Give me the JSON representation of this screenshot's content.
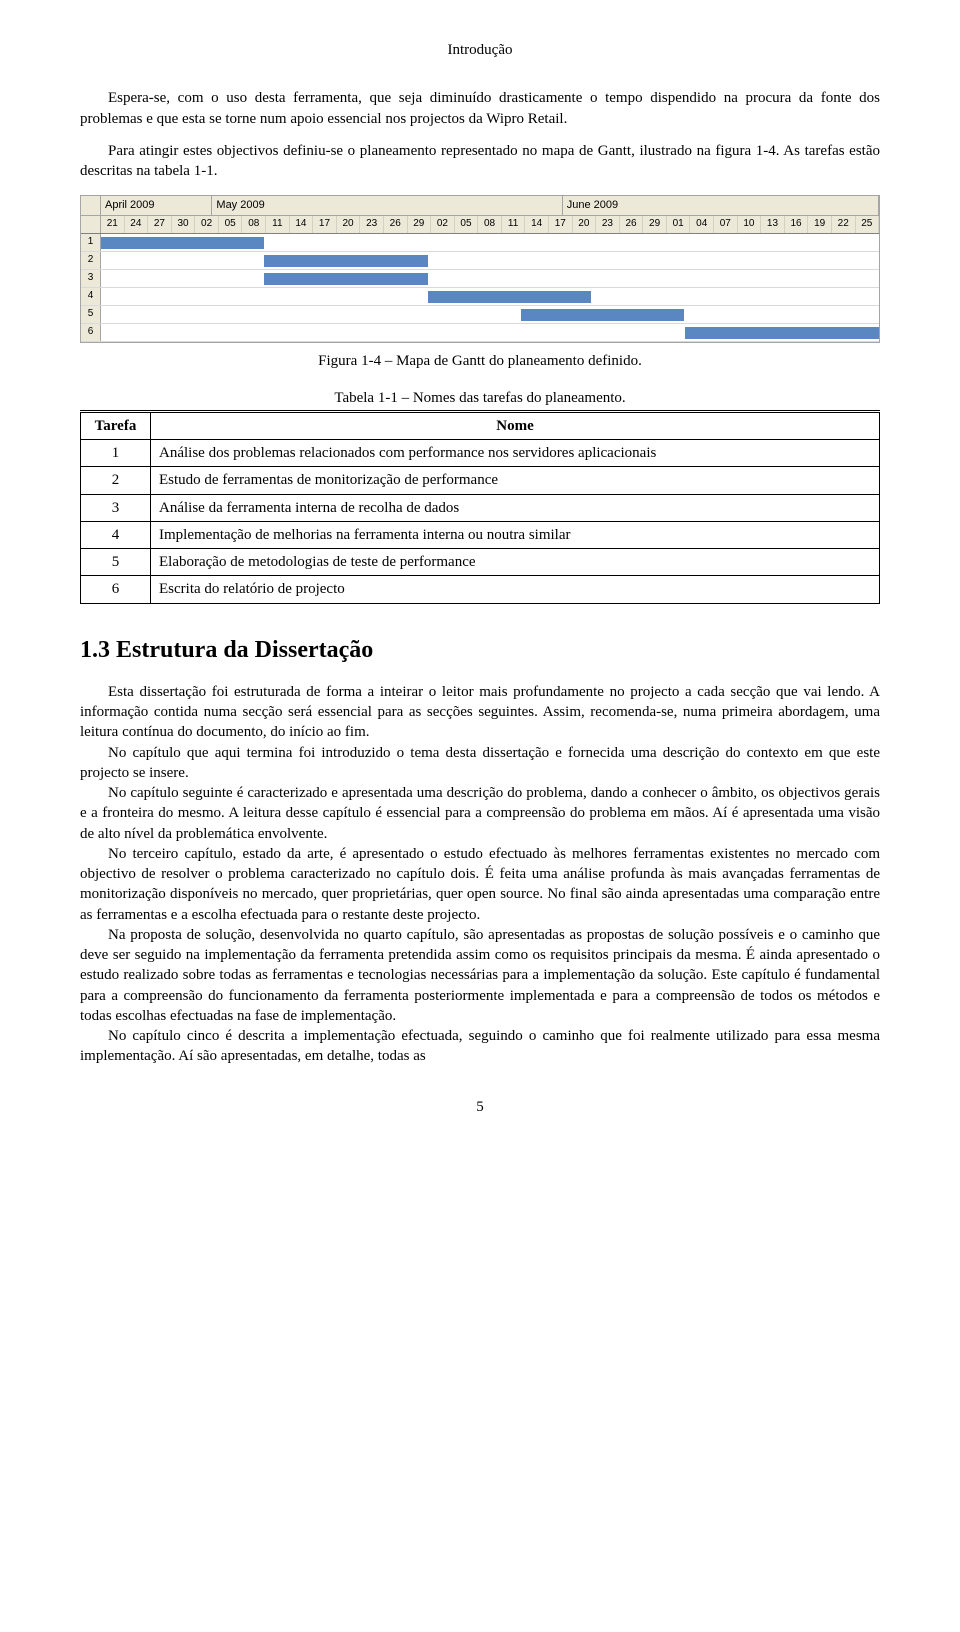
{
  "header": "Introdução",
  "intro_para": "Espera-se, com o uso desta ferramenta, que seja diminuído drasticamente o tempo dispendido na procura da fonte dos problemas e que esta se torne num apoio essencial nos projectos da Wipro Retail.",
  "intro_para2": "Para atingir estes objectivos definiu-se o planeamento representado no mapa de Gantt, ilustrado na figura 1-4. As tarefas estão descritas na tabela 1-1.",
  "gantt": {
    "months": [
      {
        "label": "April 2009",
        "flex": 3
      },
      {
        "label": "May 2009",
        "flex": 10
      },
      {
        "label": "June 2009",
        "flex": 9
      }
    ],
    "days": [
      "21",
      "24",
      "27",
      "30",
      "02",
      "05",
      "08",
      "11",
      "14",
      "17",
      "20",
      "23",
      "26",
      "29",
      "02",
      "05",
      "08",
      "11",
      "14",
      "17",
      "20",
      "23",
      "26",
      "29",
      "01",
      "04",
      "07",
      "10",
      "13",
      "16",
      "19",
      "22",
      "25"
    ],
    "rows": [
      {
        "num": "1",
        "start_pct": 0,
        "width_pct": 21,
        "color": "#5a86c2"
      },
      {
        "num": "2",
        "start_pct": 21,
        "width_pct": 21,
        "color": "#5a86c2"
      },
      {
        "num": "3",
        "start_pct": 21,
        "width_pct": 21,
        "color": "#5a86c2"
      },
      {
        "num": "4",
        "start_pct": 42,
        "width_pct": 21,
        "color": "#5a86c2"
      },
      {
        "num": "5",
        "start_pct": 54,
        "width_pct": 21,
        "color": "#5a86c2"
      },
      {
        "num": "6",
        "start_pct": 75,
        "width_pct": 25,
        "color": "#5a86c2"
      }
    ],
    "header_bg": "#ece9d8",
    "border_color": "#a5a5a5",
    "track_bg": "#ffffff"
  },
  "fig_caption": "Figura 1-4 – Mapa de Gantt do planeamento definido.",
  "tbl_caption": "Tabela 1-1 – Nomes das tarefas do planeamento.",
  "table": {
    "head_col1": "Tarefa",
    "head_col2": "Nome",
    "rows": [
      {
        "n": "1",
        "name": "Análise dos problemas relacionados com performance nos servidores aplicacionais"
      },
      {
        "n": "2",
        "name": "Estudo de ferramentas de monitorização de performance"
      },
      {
        "n": "3",
        "name": "Análise da ferramenta interna de recolha de dados"
      },
      {
        "n": "4",
        "name": "Implementação de melhorias na ferramenta interna ou noutra similar"
      },
      {
        "n": "5",
        "name": "Elaboração de metodologias de teste de performance"
      },
      {
        "n": "6",
        "name": "Escrita do relatório de projecto"
      }
    ]
  },
  "section_title": "1.3  Estrutura da Dissertação",
  "body_paras": [
    "Esta dissertação foi estruturada de forma a inteirar o leitor mais profundamente no projecto a cada secção que vai lendo. A informação contida numa secção será essencial para as secções seguintes. Assim, recomenda-se, numa primeira abordagem, uma leitura contínua do documento, do início ao fim.",
    "No capítulo que aqui termina foi introduzido o tema desta dissertação e fornecida uma descrição do contexto em que este projecto se insere.",
    "No capítulo seguinte é caracterizado e apresentada uma descrição do problema, dando a conhecer o âmbito, os objectivos gerais e a fronteira do mesmo. A leitura desse capítulo é essencial para a compreensão do problema em mãos. Aí é apresentada uma visão de alto nível da problemática envolvente.",
    "No terceiro capítulo, estado da arte, é apresentado o estudo efectuado às melhores ferramentas existentes no mercado com objectivo de resolver o problema caracterizado no capítulo dois. É feita uma análise profunda às mais avançadas ferramentas de monitorização disponíveis no mercado, quer proprietárias, quer open source. No final são ainda apresentadas uma comparação entre as ferramentas e a escolha efectuada para o restante deste projecto.",
    "Na proposta de solução, desenvolvida no quarto capítulo, são apresentadas as propostas de solução possíveis e o caminho que deve ser seguido na implementação da ferramenta pretendida assim como os requisitos principais da mesma. É ainda apresentado o estudo realizado sobre todas as ferramentas e tecnologias necessárias para a implementação da solução. Este capítulo é fundamental para a compreensão do funcionamento da ferramenta posteriormente implementada e para a compreensão de todos os métodos e todas escolhas efectuadas na fase de implementação.",
    "No capítulo cinco é descrita a implementação efectuada, seguindo o caminho que foi realmente utilizado para essa mesma implementação. Aí são apresentadas, em detalhe, todas as"
  ],
  "page_num": "5"
}
